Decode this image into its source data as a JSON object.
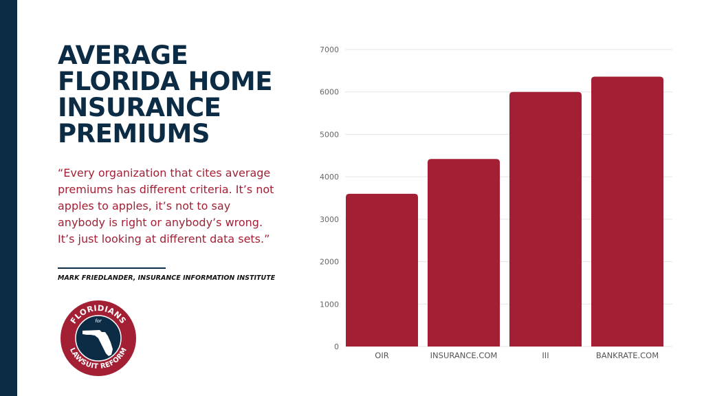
{
  "title_lines": [
    "AVERAGE",
    "FLORIDA HOME",
    "INSURANCE",
    "PREMIUMS"
  ],
  "quote": "“Every organization that cites average premiums has different criteria. It’s not apples to apples, it’s not to say anybody is right or anybody’s wrong. It’s just looking at different data sets.”",
  "attribution": "MARK FRIEDLANDER, INSURANCE INFORMATION INSTITUTE",
  "logo": {
    "top_text": "FLORIDIANS",
    "for_text": "for",
    "bottom_text": "LAWSUIT REFORM"
  },
  "colors": {
    "navy": "#0c2b44",
    "bar": "#a31f34",
    "quote": "#a31f34"
  },
  "chart_data": {
    "type": "bar",
    "categories": [
      "OIR",
      "INSURANCE.COM",
      "III",
      "BANKRATE.COM"
    ],
    "values": [
      3600,
      4420,
      6000,
      6360
    ],
    "ylim": [
      0,
      7000
    ],
    "yticks": [
      0,
      1000,
      2000,
      3000,
      4000,
      5000,
      6000,
      7000
    ],
    "grid": true
  }
}
